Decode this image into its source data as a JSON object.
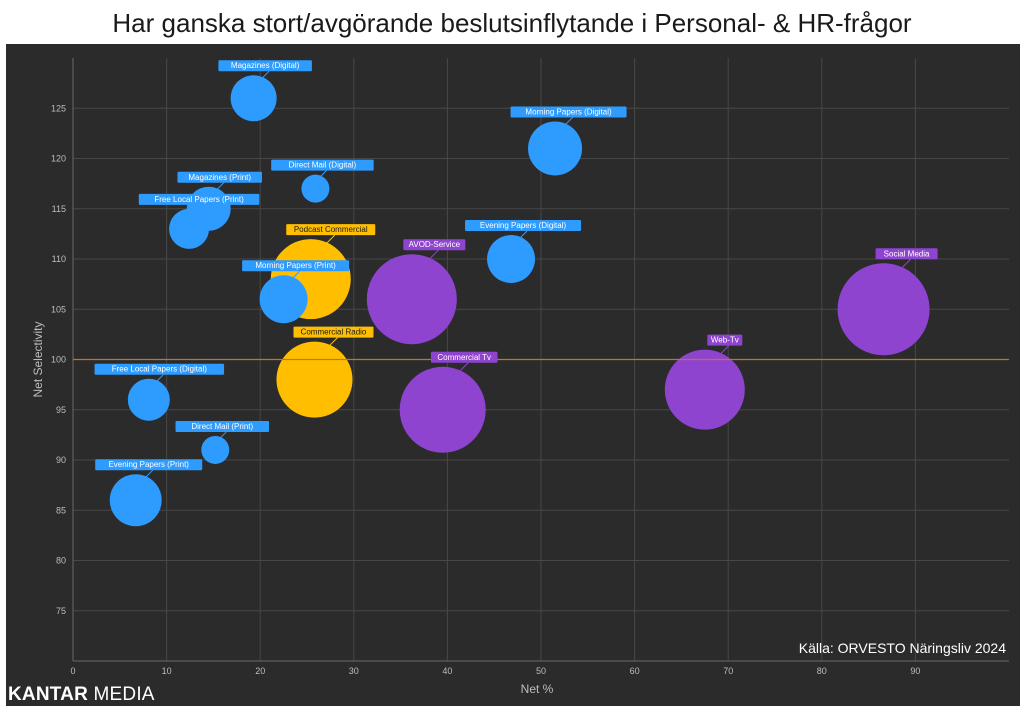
{
  "chart_data": {
    "type": "scatter",
    "title": "Har ganska stort/avgörande beslutsinflytande i Personal- & HR-frågor",
    "xlabel": "Net %",
    "ylabel": "Net Selectivity",
    "xlim": [
      0,
      100
    ],
    "ylim": [
      70,
      130
    ],
    "x_ticks": [
      "0",
      "10",
      "20",
      "30",
      "40",
      "50",
      "60",
      "70",
      "80",
      "90"
    ],
    "y_ticks": [
      "75",
      "80",
      "85",
      "90",
      "95",
      "100",
      "105",
      "110",
      "115",
      "120",
      "125"
    ],
    "reference_line_y": 100,
    "grid": true,
    "points": [
      {
        "label": "Magazines (Digital)",
        "x": 19.3,
        "y": 126,
        "size": 23,
        "color": "#2E9BFF"
      },
      {
        "label": "Morning Papers (Digital)",
        "x": 51.5,
        "y": 121,
        "size": 27,
        "color": "#2E9BFF"
      },
      {
        "label": "Direct Mail (Digital)",
        "x": 25.9,
        "y": 117,
        "size": 14,
        "color": "#2E9BFF"
      },
      {
        "label": "Magazines (Print)",
        "x": 14.5,
        "y": 115,
        "size": 22,
        "color": "#2E9BFF"
      },
      {
        "label": "Free Local Papers (Print)",
        "x": 12.4,
        "y": 113,
        "size": 20,
        "color": "#2E9BFF"
      },
      {
        "label": "Evening Papers (Digital)",
        "x": 46.8,
        "y": 110,
        "size": 24,
        "color": "#2E9BFF"
      },
      {
        "label": "Podcast Commercial",
        "x": 25.4,
        "y": 108,
        "size": 40,
        "color": "#FFBF00"
      },
      {
        "label": "Morning Papers (Print)",
        "x": 22.5,
        "y": 106,
        "size": 24,
        "color": "#2E9BFF"
      },
      {
        "label": "AVOD-Service",
        "x": 36.2,
        "y": 106,
        "size": 45,
        "color": "#8E44CF"
      },
      {
        "label": "Social Media",
        "x": 86.6,
        "y": 105,
        "size": 46,
        "color": "#8E44CF"
      },
      {
        "label": "Commercial Radio",
        "x": 25.8,
        "y": 98,
        "size": 38,
        "color": "#FFBF00"
      },
      {
        "label": "Web-Tv",
        "x": 67.5,
        "y": 97,
        "size": 40,
        "color": "#8E44CF"
      },
      {
        "label": "Commercial Tv",
        "x": 39.5,
        "y": 95,
        "size": 43,
        "color": "#8E44CF"
      },
      {
        "label": "Free Local Papers (Digital)",
        "x": 8.1,
        "y": 96,
        "size": 21,
        "color": "#2E9BFF"
      },
      {
        "label": "Direct Mail (Print)",
        "x": 15.2,
        "y": 91,
        "size": 14,
        "color": "#2E9BFF"
      },
      {
        "label": "Evening Papers (Print)",
        "x": 6.7,
        "y": 86,
        "size": 26,
        "color": "#2E9BFF"
      }
    ]
  },
  "footer": {
    "source": "Källa: ORVESTO Näringsliv 2024",
    "brand_bold": "KANTAR",
    "brand_light": "MEDIA"
  },
  "colors": {
    "panel_background": "#2b2b2b",
    "grid": "#4a4a4a",
    "reference_line": "#c8741f"
  }
}
